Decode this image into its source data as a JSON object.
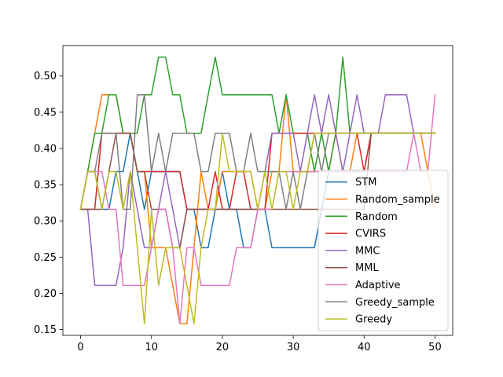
{
  "chart_data": {
    "type": "line",
    "title": "",
    "xlabel": "",
    "ylabel": "",
    "xlim": [
      -2.5,
      52.5
    ],
    "ylim": [
      0.142,
      0.542
    ],
    "xticks": [
      0,
      10,
      20,
      30,
      40,
      50
    ],
    "xtick_labels": [
      "0",
      "10",
      "20",
      "30",
      "40",
      "50"
    ],
    "yticks": [
      0.15,
      0.2,
      0.25,
      0.3,
      0.35,
      0.4,
      0.45,
      0.5
    ],
    "ytick_labels": [
      "0.15",
      "0.20",
      "0.25",
      "0.30",
      "0.35",
      "0.40",
      "0.45",
      "0.50"
    ],
    "grid": false,
    "legend_position": "lower-right",
    "x": [
      0,
      1,
      2,
      3,
      4,
      5,
      6,
      7,
      8,
      9,
      10,
      11,
      12,
      13,
      14,
      15,
      16,
      17,
      18,
      19,
      20,
      21,
      22,
      23,
      24,
      25,
      26,
      27,
      28,
      29,
      30,
      31,
      32,
      33,
      34,
      35,
      36,
      37,
      38,
      39,
      40,
      41,
      42,
      43,
      44,
      45,
      46,
      47,
      48,
      49,
      50
    ],
    "series": [
      {
        "name": "STM",
        "color": "#1f77b4",
        "values": [
          0.316,
          0.368,
          0.368,
          0.316,
          0.316,
          0.368,
          0.368,
          0.421,
          0.368,
          0.316,
          0.368,
          0.368,
          0.368,
          0.368,
          0.368,
          0.316,
          0.316,
          0.263,
          0.263,
          0.316,
          0.368,
          0.316,
          0.316,
          0.263,
          0.263,
          0.316,
          0.316,
          0.263,
          0.263,
          0.263,
          0.263,
          0.263,
          0.263,
          0.263,
          0.316,
          0.368,
          0.368,
          0.368,
          0.368,
          0.368,
          0.368,
          0.421,
          0.421,
          0.421,
          0.421,
          0.421,
          0.421,
          0.421,
          0.421,
          0.421,
          0.421
        ]
      },
      {
        "name": "Random_sample",
        "color": "#ff7f0e",
        "values": [
          0.316,
          0.368,
          0.421,
          0.474,
          0.474,
          0.474,
          0.421,
          0.421,
          0.368,
          0.368,
          0.263,
          0.263,
          0.263,
          0.211,
          0.158,
          0.158,
          0.263,
          0.368,
          0.316,
          0.316,
          0.368,
          0.368,
          0.368,
          0.368,
          0.368,
          0.316,
          0.316,
          0.368,
          0.368,
          0.474,
          0.368,
          0.368,
          0.368,
          0.368,
          0.368,
          0.368,
          0.421,
          0.368,
          0.368,
          0.421,
          0.421,
          0.421,
          0.421,
          0.421,
          0.421,
          0.421,
          0.421,
          0.421,
          0.421,
          0.368,
          0.316
        ]
      },
      {
        "name": "Random",
        "color": "#2ca02c",
        "values": [
          0.316,
          0.368,
          0.421,
          0.421,
          0.474,
          0.474,
          0.421,
          0.421,
          0.421,
          0.474,
          0.474,
          0.526,
          0.526,
          0.474,
          0.474,
          0.421,
          0.421,
          0.421,
          0.474,
          0.526,
          0.474,
          0.474,
          0.474,
          0.474,
          0.474,
          0.474,
          0.474,
          0.474,
          0.421,
          0.474,
          0.421,
          0.421,
          0.421,
          0.368,
          0.421,
          0.368,
          0.421,
          0.526,
          0.421,
          0.421,
          0.421,
          0.421,
          0.421,
          0.421,
          0.421,
          0.421,
          0.421,
          0.421,
          0.421,
          0.421,
          0.421
        ]
      },
      {
        "name": "CVIRS",
        "color": "#d62728",
        "values": [
          0.316,
          0.316,
          0.316,
          0.421,
          0.421,
          0.421,
          0.421,
          0.421,
          0.368,
          0.368,
          0.368,
          0.368,
          0.368,
          0.368,
          0.368,
          0.316,
          0.316,
          0.316,
          0.316,
          0.368,
          0.316,
          0.316,
          0.368,
          0.368,
          0.316,
          0.316,
          0.316,
          0.421,
          0.421,
          0.421,
          0.421,
          0.421,
          0.421,
          0.421,
          0.421,
          0.421,
          0.421,
          0.421,
          0.421,
          0.421,
          0.368,
          0.421,
          0.421,
          0.421,
          0.421,
          0.421,
          0.421,
          0.421,
          0.421,
          0.421,
          0.421
        ]
      },
      {
        "name": "MMC",
        "color": "#9467bd",
        "values": [
          0.316,
          0.316,
          0.211,
          0.211,
          0.211,
          0.211,
          0.263,
          0.368,
          0.316,
          0.263,
          0.263,
          0.316,
          0.368,
          0.316,
          0.263,
          0.316,
          0.316,
          0.316,
          0.316,
          0.316,
          0.316,
          0.316,
          0.316,
          0.316,
          0.316,
          0.316,
          0.368,
          0.421,
          0.421,
          0.421,
          0.421,
          0.368,
          0.421,
          0.474,
          0.421,
          0.474,
          0.421,
          0.368,
          0.421,
          0.474,
          0.421,
          0.421,
          0.421,
          0.474,
          0.474,
          0.474,
          0.474,
          0.421,
          0.421,
          0.421,
          0.421
        ]
      },
      {
        "name": "MML",
        "color": "#8c564b",
        "values": [
          0.316,
          0.316,
          0.316,
          0.316,
          0.368,
          0.421,
          0.421,
          0.421,
          0.368,
          0.368,
          0.316,
          0.316,
          0.316,
          0.263,
          0.263,
          0.316,
          0.316,
          0.316,
          0.316,
          0.316,
          0.316,
          0.316,
          0.316,
          0.316,
          0.316,
          0.316,
          0.316,
          0.316,
          0.316,
          0.316,
          0.316,
          0.316,
          0.316,
          0.316,
          0.316,
          0.316,
          0.316,
          0.316,
          0.316,
          0.316,
          0.316,
          0.421,
          0.421,
          0.421,
          0.421,
          0.421,
          0.421,
          0.421,
          0.421,
          0.421,
          0.421
        ]
      },
      {
        "name": "Adaptive",
        "color": "#e377c2",
        "values": [
          0.316,
          0.368,
          0.368,
          0.368,
          0.316,
          0.316,
          0.211,
          0.211,
          0.211,
          0.211,
          0.263,
          0.316,
          0.316,
          0.263,
          0.158,
          0.263,
          0.263,
          0.211,
          0.211,
          0.211,
          0.211,
          0.211,
          0.263,
          0.263,
          0.263,
          0.316,
          0.316,
          0.316,
          0.368,
          0.368,
          0.368,
          0.368,
          0.368,
          0.368,
          0.368,
          0.368,
          0.368,
          0.368,
          0.368,
          0.368,
          0.368,
          0.368,
          0.368,
          0.368,
          0.368,
          0.368,
          0.368,
          0.421,
          0.368,
          0.368,
          0.474
        ]
      },
      {
        "name": "Greedy_sample",
        "color": "#7f7f7f",
        "values": [
          0.316,
          0.368,
          0.368,
          0.421,
          0.421,
          0.421,
          0.316,
          0.316,
          0.474,
          0.474,
          0.368,
          0.421,
          0.368,
          0.421,
          0.421,
          0.421,
          0.421,
          0.368,
          0.368,
          0.421,
          0.421,
          0.421,
          0.368,
          0.368,
          0.421,
          0.368,
          0.368,
          0.368,
          0.368,
          0.316,
          0.368,
          0.316,
          0.368,
          0.421,
          0.368,
          0.421,
          0.421,
          0.421,
          0.421,
          0.421,
          0.421,
          0.421,
          0.421,
          0.421,
          0.421,
          0.421,
          0.421,
          0.421,
          0.421,
          0.421,
          0.421
        ]
      },
      {
        "name": "Greedy",
        "color": "#bcbd22",
        "values": [
          0.316,
          0.368,
          0.368,
          0.316,
          0.368,
          0.368,
          0.316,
          0.368,
          0.263,
          0.158,
          0.316,
          0.211,
          0.263,
          0.263,
          0.263,
          0.211,
          0.158,
          0.263,
          0.316,
          0.316,
          0.421,
          0.368,
          0.368,
          0.368,
          0.368,
          0.316,
          0.368,
          0.316,
          0.368,
          0.368,
          0.316,
          0.368,
          0.368,
          0.421,
          0.421,
          0.421,
          0.421,
          0.421,
          0.421,
          0.421,
          0.421,
          0.421,
          0.421,
          0.421,
          0.421,
          0.421,
          0.421,
          0.421,
          0.421,
          0.421,
          0.421
        ]
      }
    ]
  }
}
